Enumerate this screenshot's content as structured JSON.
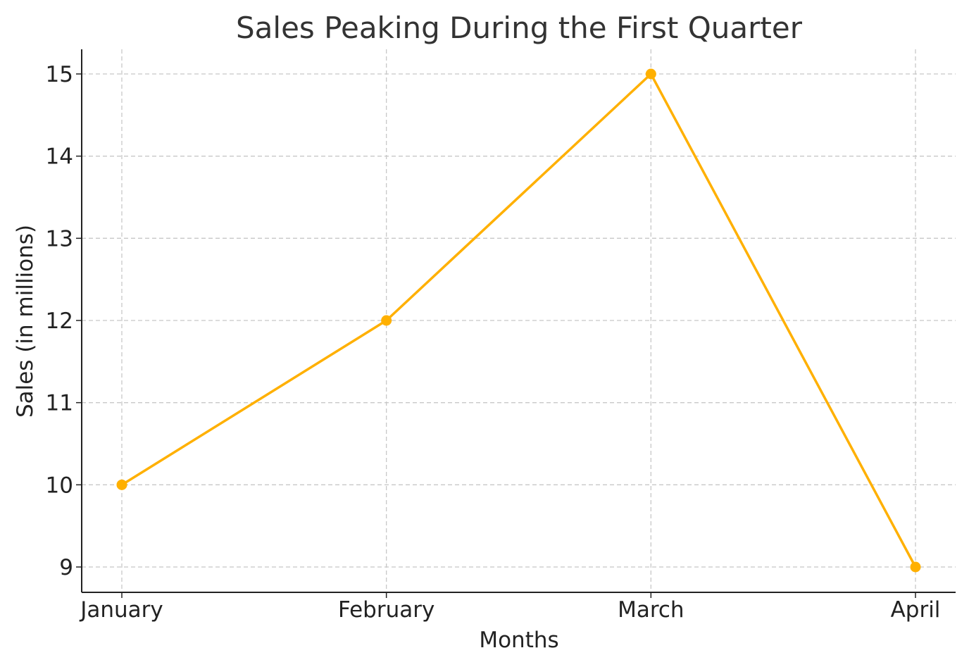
{
  "chart_data": {
    "type": "line",
    "title": "Sales Peaking During the First Quarter",
    "xlabel": "Months",
    "ylabel": "Sales (in millions)",
    "categories": [
      "January",
      "February",
      "March",
      "April"
    ],
    "series": [
      {
        "values": [
          10,
          12,
          15,
          9
        ]
      }
    ],
    "yticks": [
      "9",
      "10",
      "11",
      "12",
      "13",
      "14",
      "15"
    ],
    "ylim": [
      8.7,
      15.3
    ],
    "grid": true,
    "legend": "none",
    "line_color": "#FFB000"
  }
}
